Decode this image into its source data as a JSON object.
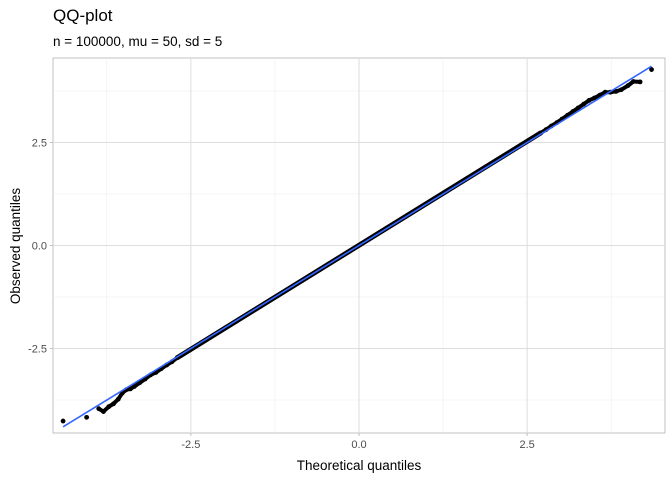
{
  "chart_data": {
    "type": "scatter",
    "title": "QQ-plot",
    "subtitle": "n = 100000, mu = 50, sd = 5",
    "xlabel": "Theoretical quantiles",
    "ylabel": "Observed quantiles",
    "xlim": [
      -4.55,
      4.55
    ],
    "ylim": [
      -4.55,
      4.55
    ],
    "x_ticks": [
      -2.5,
      0.0,
      2.5
    ],
    "x_tick_labels": [
      "-2.5",
      "0.0",
      "2.5"
    ],
    "y_ticks": [
      -2.5,
      0.0,
      2.5
    ],
    "y_tick_labels": [
      "-2.5",
      "0.0",
      "2.5"
    ],
    "x_minor_ticks": [
      -3.75,
      -1.25,
      1.25,
      3.75
    ],
    "y_minor_ticks": [
      -3.75,
      -1.25,
      1.25,
      3.75
    ],
    "grid": true,
    "theme": "light",
    "series": [
      {
        "type": "points",
        "color": "#000000",
        "points": [
          [
            -4.4,
            -4.26
          ],
          [
            -4.05,
            -4.17
          ],
          [
            -3.87,
            -3.96
          ],
          [
            -3.8,
            -4.03
          ],
          [
            -3.72,
            -3.91
          ],
          [
            -3.65,
            -3.84
          ],
          [
            -3.58,
            -3.73
          ],
          [
            -3.52,
            -3.58
          ],
          [
            -3.46,
            -3.5
          ],
          [
            -3.4,
            -3.48
          ],
          [
            -3.34,
            -3.42
          ],
          [
            -3.26,
            -3.33
          ],
          [
            -3.18,
            -3.24
          ],
          [
            -3.1,
            -3.14
          ],
          [
            -3.02,
            -3.08
          ],
          [
            -2.94,
            -2.99
          ],
          [
            -2.86,
            -2.9
          ],
          [
            -2.78,
            -2.82
          ],
          [
            -2.7,
            -2.72
          ],
          [
            2.7,
            2.73
          ],
          [
            2.78,
            2.81
          ],
          [
            2.86,
            2.9
          ],
          [
            2.94,
            2.98
          ],
          [
            3.02,
            3.07
          ],
          [
            3.1,
            3.16
          ],
          [
            3.18,
            3.25
          ],
          [
            3.26,
            3.34
          ],
          [
            3.34,
            3.43
          ],
          [
            3.42,
            3.52
          ],
          [
            3.5,
            3.58
          ],
          [
            3.58,
            3.65
          ],
          [
            3.66,
            3.72
          ],
          [
            3.74,
            3.72
          ],
          [
            3.82,
            3.74
          ],
          [
            3.9,
            3.78
          ],
          [
            4.0,
            3.88
          ],
          [
            4.08,
            3.98
          ],
          [
            4.18,
            3.97
          ],
          [
            4.35,
            4.27
          ]
        ]
      },
      {
        "type": "line",
        "name": "",
        "color": "#3366ff",
        "from": [
          -4.4,
          -4.4
        ],
        "to": [
          4.35,
          4.35
        ]
      }
    ]
  }
}
